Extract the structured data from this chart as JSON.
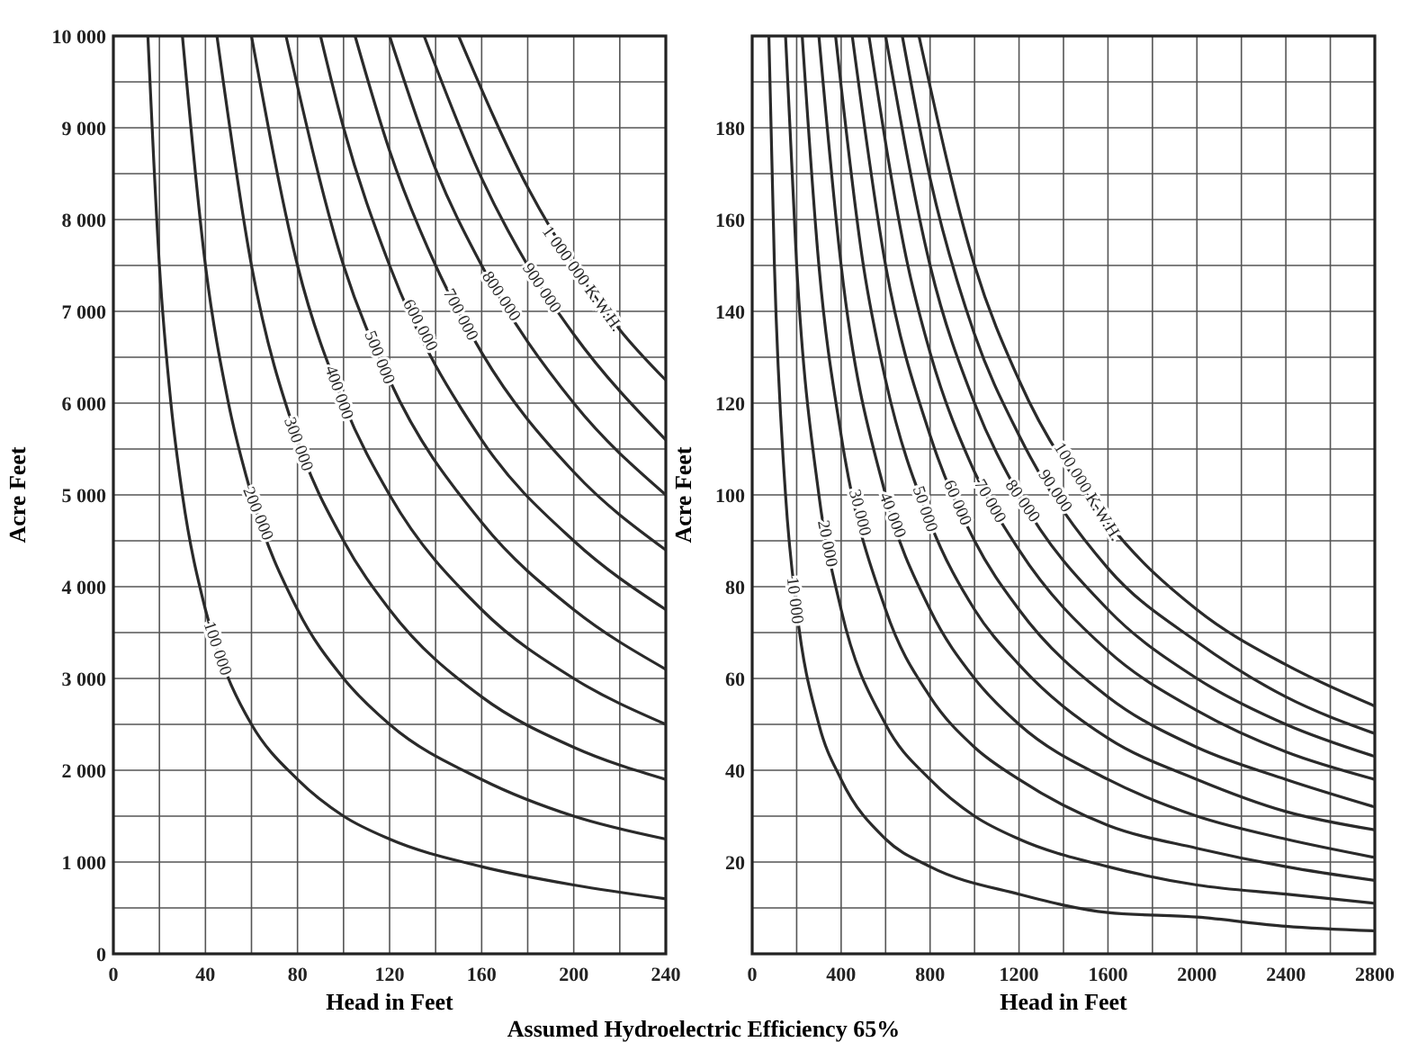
{
  "chart_data": [
    {
      "type": "line",
      "xlabel": "Head in Feet",
      "ylabel": "Acre Feet",
      "xlim": [
        0,
        240
      ],
      "ylim": [
        0,
        10000
      ],
      "xticks": [
        0,
        40,
        80,
        120,
        160,
        200,
        240
      ],
      "yticks": [
        0,
        {
          "value": 1000,
          "label": "1 000"
        },
        {
          "value": 2000,
          "label": "2 000"
        },
        {
          "value": 3000,
          "label": "3 000"
        },
        {
          "value": 4000,
          "label": "4 000"
        },
        {
          "value": 5000,
          "label": "5 000"
        },
        {
          "value": 6000,
          "label": "6 000"
        },
        {
          "value": 7000,
          "label": "7 000"
        },
        {
          "value": 8000,
          "label": "8 000"
        },
        {
          "value": 9000,
          "label": "9 000"
        },
        {
          "value": 10000,
          "label": "10 000"
        }
      ],
      "grid": true,
      "marker": "none",
      "line_style": "solid",
      "annotations": [
        "Assumed Hydroelectric Efficiency 65%"
      ],
      "series": [
        {
          "name": "100 000",
          "color": "#2a2a2a",
          "x": [
            15,
            20,
            25,
            30,
            40,
            50,
            60,
            80,
            100,
            120,
            160,
            200,
            240
          ],
          "values": [
            10000,
            7500,
            6000,
            5000,
            3750,
            3000,
            2500,
            1900,
            1500,
            1250,
            950,
            750,
            600
          ]
        },
        {
          "name": "200 000",
          "color": "#2a2a2a",
          "x": [
            30,
            40,
            50,
            60,
            80,
            100,
            120,
            160,
            200,
            240
          ],
          "values": [
            10000,
            7500,
            6000,
            5000,
            3750,
            3000,
            2500,
            1900,
            1500,
            1250
          ]
        },
        {
          "name": "300 000",
          "color": "#2a2a2a",
          "x": [
            45,
            60,
            80,
            100,
            120,
            160,
            200,
            240
          ],
          "values": [
            10000,
            7500,
            5600,
            4500,
            3750,
            2800,
            2250,
            1900
          ]
        },
        {
          "name": "400 000",
          "color": "#2a2a2a",
          "x": [
            60,
            80,
            100,
            120,
            160,
            200,
            240
          ],
          "values": [
            10000,
            7500,
            6000,
            5000,
            3750,
            3000,
            2500
          ]
        },
        {
          "name": "500 000",
          "color": "#2a2a2a",
          "x": [
            75,
            100,
            120,
            160,
            200,
            240
          ],
          "values": [
            10000,
            7500,
            6250,
            4700,
            3750,
            3100
          ]
        },
        {
          "name": "600 000",
          "color": "#2a2a2a",
          "x": [
            90,
            100,
            120,
            160,
            200,
            240
          ],
          "values": [
            10000,
            9000,
            7500,
            5600,
            4500,
            3750
          ]
        },
        {
          "name": "700 000",
          "color": "#2a2a2a",
          "x": [
            105,
            120,
            140,
            160,
            200,
            240
          ],
          "values": [
            10000,
            8750,
            7500,
            6550,
            5250,
            4400
          ]
        },
        {
          "name": "800 000",
          "color": "#2a2a2a",
          "x": [
            120,
            140,
            160,
            200,
            240
          ],
          "values": [
            10000,
            8550,
            7500,
            6000,
            5000
          ]
        },
        {
          "name": "900 000",
          "color": "#2a2a2a",
          "x": [
            135,
            160,
            180,
            200,
            240
          ],
          "values": [
            10000,
            8450,
            7500,
            6750,
            5600
          ]
        },
        {
          "name": "1 000 000 K.W.H.",
          "color": "#2a2a2a",
          "x": [
            150,
            180,
            200,
            220,
            240
          ],
          "values": [
            10000,
            8350,
            7500,
            6800,
            6250
          ]
        }
      ]
    },
    {
      "type": "line",
      "xlabel": "Head in Feet",
      "ylabel": "Acre Feet",
      "xlim": [
        0,
        2800
      ],
      "ylim": [
        0,
        200
      ],
      "xticks": [
        0,
        400,
        800,
        1200,
        1600,
        2000,
        2400,
        2800
      ],
      "yticks": [
        20,
        40,
        60,
        80,
        100,
        120,
        140,
        160,
        180
      ],
      "grid": true,
      "marker": "none",
      "line_style": "solid",
      "series": [
        {
          "name": "10 000",
          "color": "#2a2a2a",
          "x": [
            75,
            100,
            150,
            200,
            300,
            400,
            600,
            800,
            1200,
            1600,
            2000,
            2400,
            2800
          ],
          "values": [
            200,
            150,
            100,
            75,
            50,
            38,
            25,
            19,
            13,
            9,
            8,
            6,
            5
          ]
        },
        {
          "name": "20 000",
          "color": "#2a2a2a",
          "x": [
            150,
            200,
            300,
            400,
            600,
            800,
            1000,
            1200,
            1600,
            2000,
            2400,
            2800
          ],
          "values": [
            200,
            150,
            100,
            75,
            50,
            38,
            30,
            25,
            19,
            15,
            13,
            11
          ]
        },
        {
          "name": "30 000",
          "color": "#2a2a2a",
          "x": [
            225,
            300,
            400,
            600,
            800,
            1000,
            1200,
            1600,
            2000,
            2400,
            2800
          ],
          "values": [
            200,
            150,
            113,
            75,
            56,
            45,
            38,
            28,
            23,
            19,
            16
          ]
        },
        {
          "name": "40 000",
          "color": "#2a2a2a",
          "x": [
            300,
            400,
            600,
            800,
            1000,
            1200,
            1600,
            2000,
            2400,
            2800
          ],
          "values": [
            200,
            150,
            100,
            75,
            60,
            50,
            38,
            30,
            25,
            21
          ]
        },
        {
          "name": "50 000",
          "color": "#2a2a2a",
          "x": [
            375,
            500,
            600,
            800,
            1000,
            1200,
            1600,
            2000,
            2400,
            2800
          ],
          "values": [
            200,
            150,
            125,
            94,
            75,
            63,
            47,
            38,
            31,
            27
          ]
        },
        {
          "name": "60 000",
          "color": "#2a2a2a",
          "x": [
            450,
            600,
            800,
            1000,
            1200,
            1600,
            2000,
            2400,
            2800
          ],
          "values": [
            200,
            150,
            113,
            90,
            75,
            56,
            45,
            38,
            32
          ]
        },
        {
          "name": "70 000",
          "color": "#2a2a2a",
          "x": [
            525,
            700,
            800,
            1000,
            1200,
            1600,
            2000,
            2400,
            2800
          ],
          "values": [
            200,
            150,
            131,
            105,
            88,
            66,
            53,
            44,
            38
          ]
        },
        {
          "name": "80 000",
          "color": "#2a2a2a",
          "x": [
            600,
            800,
            1000,
            1200,
            1600,
            2000,
            2400,
            2800
          ],
          "values": [
            200,
            150,
            120,
            100,
            75,
            60,
            50,
            43
          ]
        },
        {
          "name": "90 000",
          "color": "#2a2a2a",
          "x": [
            675,
            800,
            1000,
            1200,
            1600,
            2000,
            2400,
            2800
          ],
          "values": [
            200,
            169,
            135,
            113,
            84,
            68,
            56,
            48
          ]
        },
        {
          "name": "100 000 K.W.H.",
          "color": "#2a2a2a",
          "x": [
            750,
            1000,
            1200,
            1600,
            2000,
            2400,
            2800
          ],
          "values": [
            200,
            150,
            125,
            94,
            75,
            63,
            54
          ]
        }
      ]
    }
  ]
}
